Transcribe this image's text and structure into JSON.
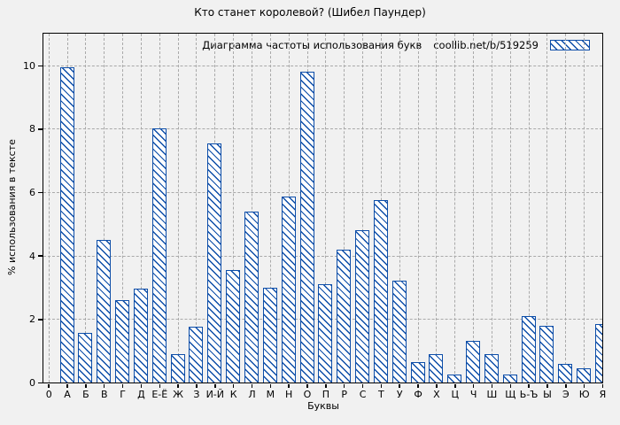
{
  "chart_data": {
    "type": "bar",
    "title": "Кто станет королевой? (Шибел Паундер)",
    "legend_label": "Диаграмма частоты использования букв",
    "legend_source": "coollib.net/b/519259",
    "legend_position": "top-right",
    "categories": [
      "0",
      "А",
      "Б",
      "В",
      "Г",
      "Д",
      "Е-Ё",
      "Ж",
      "З",
      "И-Й",
      "К",
      "Л",
      "М",
      "Н",
      "О",
      "П",
      "Р",
      "С",
      "Т",
      "У",
      "Ф",
      "Х",
      "Ц",
      "Ч",
      "Ш",
      "Щ",
      "Ь-Ъ",
      "Ы",
      "Э",
      "Ю",
      "Я"
    ],
    "values": [
      0,
      9.95,
      1.55,
      4.5,
      2.6,
      2.95,
      8.0,
      0.9,
      1.75,
      7.55,
      3.55,
      5.4,
      3.0,
      5.85,
      9.8,
      3.1,
      4.2,
      4.8,
      5.75,
      3.2,
      0.65,
      0.9,
      0.25,
      1.3,
      0.9,
      0.25,
      2.1,
      1.8,
      0.6,
      0.45,
      1.85
    ],
    "xlabel": "Буквы",
    "ylabel": "% использования в тексте",
    "ylim": [
      0,
      11
    ],
    "yticks": [
      0,
      2,
      4,
      6,
      8,
      10
    ],
    "grid": true,
    "grid_style": "dashed",
    "bar_style": "diagonal-hatch-backslash",
    "bar_fill": "#ffffff",
    "bar_color": "#0c4da8",
    "grid_color": "#a9a9a9",
    "frame_color": "#000000",
    "background": "#f1f1f1"
  }
}
